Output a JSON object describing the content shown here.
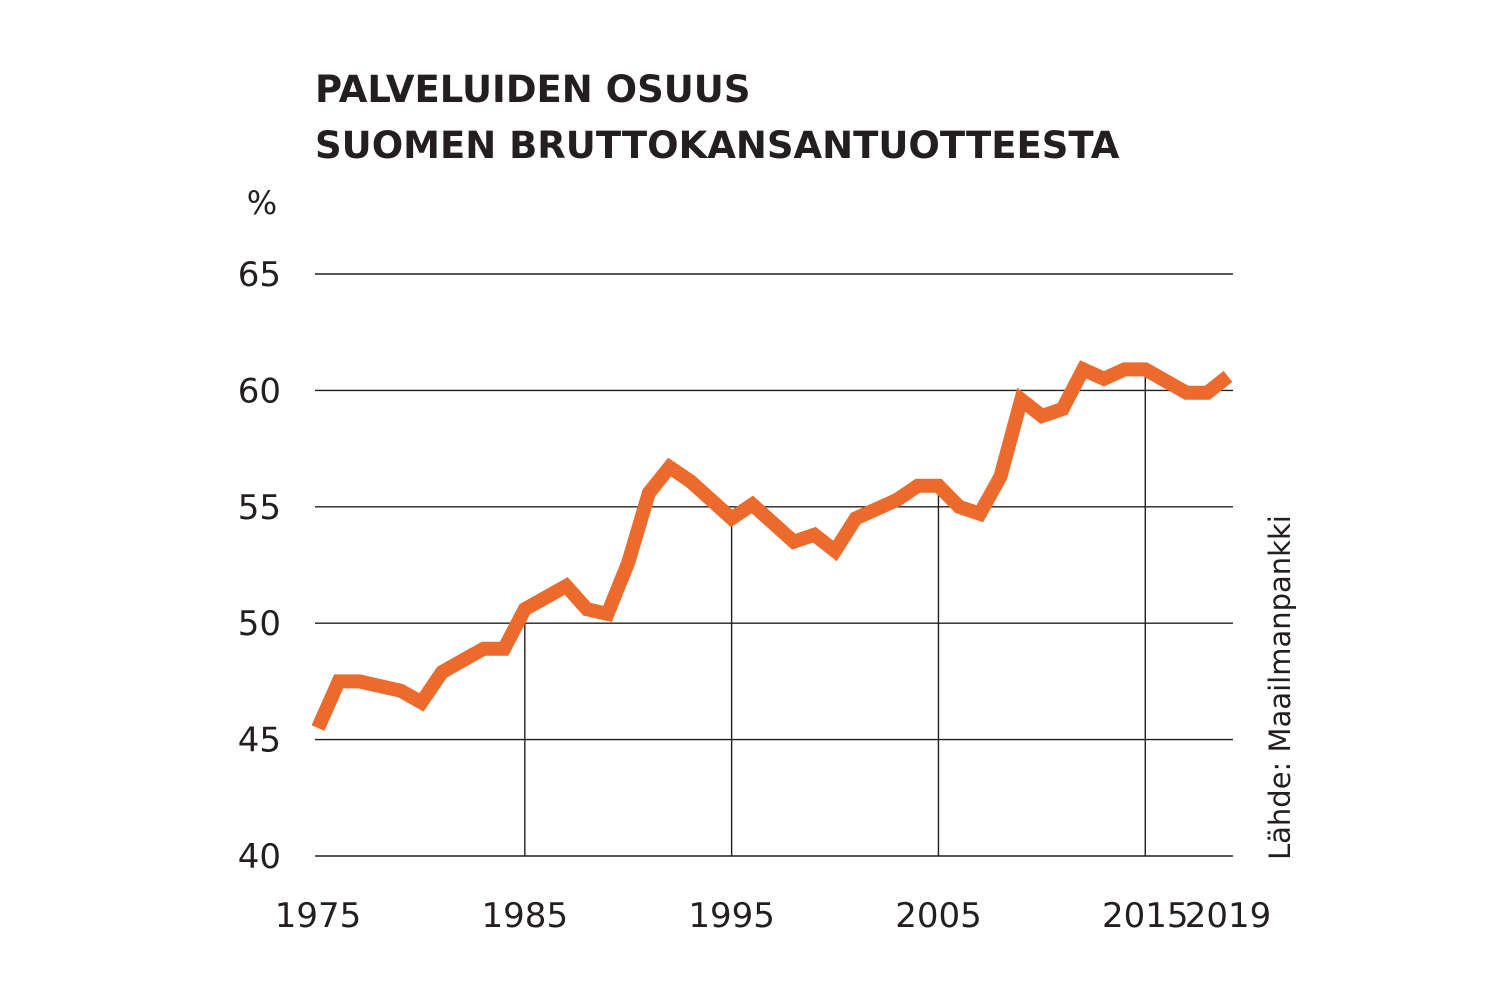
{
  "chart_data": {
    "type": "line",
    "title_lines": [
      "PALVELUIDEN OSUUS",
      "SUOMEN BRUTTOKANSANTUOTTEESTA"
    ],
    "unit": "%",
    "source": "Lähde: Maailmanpankki",
    "ylim": [
      40,
      65
    ],
    "xlim": [
      1975,
      2019
    ],
    "y_ticks": [
      "40",
      "45",
      "50",
      "55",
      "60",
      "65"
    ],
    "x_ticks": [
      "1975",
      "1985",
      "1995",
      "2005",
      "2015",
      "2019"
    ],
    "grid": "horizontal lines at each y tick; vertical lines at 1985, 1995, 2005, 2015",
    "line_color": "#ec6a2b",
    "x": [
      1975,
      1976,
      1977,
      1978,
      1979,
      1980,
      1981,
      1982,
      1983,
      1984,
      1985,
      1986,
      1987,
      1988,
      1989,
      1990,
      1991,
      1992,
      1993,
      1994,
      1995,
      1996,
      1997,
      1998,
      1999,
      2000,
      2001,
      2002,
      2003,
      2004,
      2005,
      2006,
      2007,
      2008,
      2009,
      2010,
      2011,
      2012,
      2013,
      2014,
      2015,
      2016,
      2017,
      2018,
      2019
    ],
    "y": [
      45.5,
      47.5,
      47.5,
      47.3,
      47.1,
      46.6,
      47.9,
      48.4,
      48.9,
      48.9,
      50.6,
      51.1,
      51.6,
      50.6,
      50.4,
      52.6,
      55.6,
      56.7,
      56.1,
      55.3,
      54.5,
      55.1,
      54.3,
      53.5,
      53.8,
      53.1,
      54.5,
      54.9,
      55.3,
      55.9,
      55.9,
      55.0,
      54.7,
      56.3,
      59.6,
      58.9,
      59.2,
      60.9,
      60.5,
      60.9,
      60.9,
      60.4,
      59.9,
      59.9,
      60.6
    ]
  }
}
